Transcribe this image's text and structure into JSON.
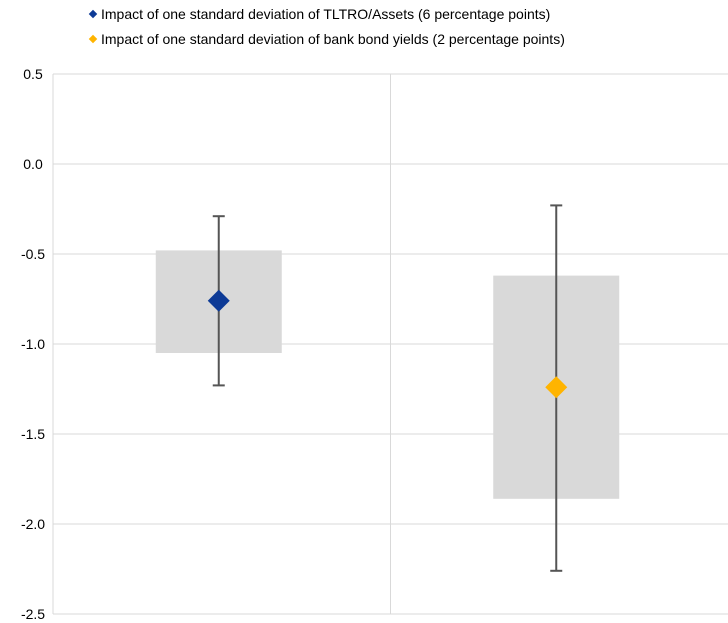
{
  "chart_data": {
    "type": "scatter",
    "title": "",
    "xlabel": "",
    "ylabel": "",
    "ylim": [
      -2.5,
      0.5
    ],
    "yticks": [
      "0.5",
      "0.0",
      "-0.5",
      "-1.0",
      "-1.5",
      "-2.0",
      "-2.5"
    ],
    "grid": true,
    "legend_position": "top",
    "series": [
      {
        "name": "Impact of one standard deviation of TLTRO/Assets (6 percentage points)",
        "color": "#0d3a96",
        "marker": "diamond",
        "point": -0.76,
        "box": [
          -1.05,
          -0.48
        ],
        "error_bar": [
          -1.23,
          -0.29
        ]
      },
      {
        "name": "Impact of one standard deviation of bank bond yields (2 percentage points)",
        "color": "#ffb400",
        "marker": "diamond",
        "point": -1.24,
        "box": [
          -1.86,
          -0.62
        ],
        "error_bar": [
          -2.26,
          -0.23
        ]
      }
    ],
    "box_color": "#d9d9d9",
    "error_bar_color": "#555555",
    "grid_color": "#d9d9d9"
  }
}
